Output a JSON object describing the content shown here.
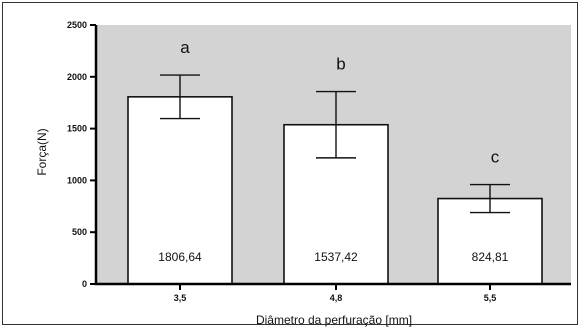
{
  "chart_data": {
    "type": "bar",
    "categories": [
      "3,5",
      "4,8",
      "5,5"
    ],
    "values": [
      1806.64,
      1537.42,
      824.81
    ],
    "errors": [
      210,
      320,
      135
    ],
    "value_labels": [
      "1806,64",
      "1537,42",
      "824,81"
    ],
    "significance_letters": [
      "a",
      "b",
      "c"
    ],
    "xlabel": "Diâmetro da perfuração [mm]",
    "ylabel": "Força(N)",
    "ylim": [
      0,
      2500
    ],
    "yticks": [
      0,
      500,
      1000,
      1500,
      2000,
      2500
    ],
    "ytick_labels": [
      "0",
      "500",
      "1000",
      "1500",
      "2000",
      "2500"
    ],
    "grid": false,
    "colors": {
      "plot_background": "#d3d3d3",
      "bar_fill": "#ffffff",
      "bar_stroke": "#111111"
    }
  }
}
